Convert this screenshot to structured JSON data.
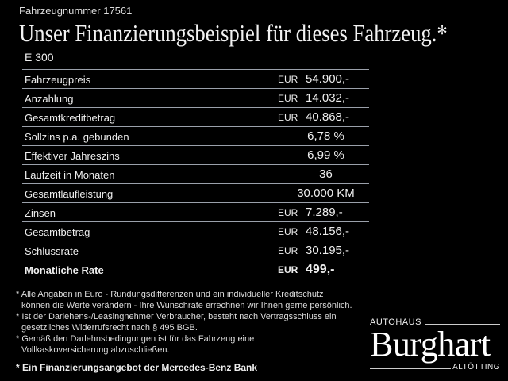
{
  "header": {
    "vehicle_number": "Fahrzeugnummer 17561",
    "title": "Unser Finanzierungsbeispiel für dieses Fahrzeug.*",
    "model": "E 300"
  },
  "rows": [
    {
      "label": "Fahrzeugpreis",
      "currency": "EUR",
      "value": "54.900,-"
    },
    {
      "label": "Anzahlung",
      "currency": "EUR",
      "value": "14.032,-"
    },
    {
      "label": "Gesamtkreditbetrag",
      "currency": "EUR",
      "value": "40.868,-"
    },
    {
      "label": "Sollzins p.a. gebunden",
      "value": "6,78 %"
    },
    {
      "label": "Effektiver Jahreszins",
      "value": "6,99 %"
    },
    {
      "label": "Laufzeit in Monaten",
      "value": "36"
    },
    {
      "label": "Gesamtlaufleistung",
      "value": "30.000 KM"
    },
    {
      "label": "Zinsen",
      "currency": "EUR",
      "value": "7.289,-"
    },
    {
      "label": "Gesamtbetrag",
      "currency": "EUR",
      "value": "48.156,-"
    },
    {
      "label": "Schlussrate",
      "currency": "EUR",
      "value": "30.195,-"
    },
    {
      "label": "Monatliche Rate",
      "currency": "EUR",
      "value": "499,-",
      "bold": true
    }
  ],
  "notes": [
    "* Alle Angaben in Euro - Rundungsdifferenzen und ein individueller Kreditschutz",
    "können die Werte verändern - Ihre Wunschrate errechnen wir Ihnen gerne persönlich.",
    "* Ist der Darlehens-/Leasingnehmer Verbraucher, besteht nach Vertragsschluss ein",
    "gesetzliches Widerrufsrecht nach § 495 BGB.",
    "* Gemäß den Darlehnsbedingungen ist für das Fahrzeug eine",
    "Vollkaskoversicherung abzuschließen."
  ],
  "offer": "* Ein Finanzierungsangebot der Mercedes-Benz Bank",
  "logo": {
    "top": "AUTOHAUS",
    "name": "Burghart",
    "bottom": "ALTÖTTING"
  }
}
